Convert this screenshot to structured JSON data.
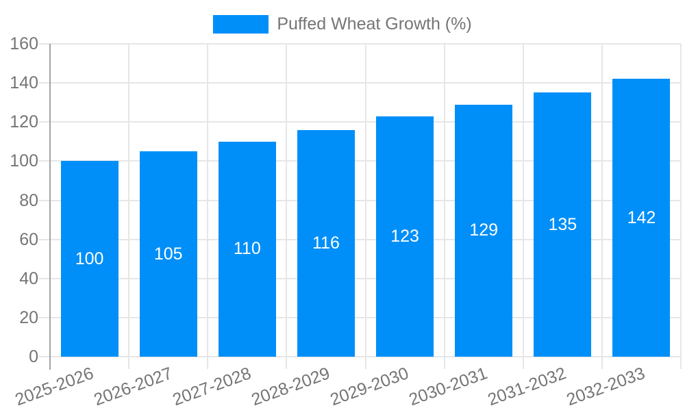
{
  "chart_data": {
    "type": "bar",
    "title": "",
    "series": [
      {
        "name": "Puffed Wheat Growth (%)",
        "values": [
          100,
          105,
          110,
          116,
          123,
          129,
          135,
          142
        ]
      }
    ],
    "categories": [
      "2025-2026",
      "2026-2027",
      "2027-2028",
      "2028-2029",
      "2029-2030",
      "2030-2031",
      "2031-2032",
      "2032-2033"
    ],
    "value_labels": [
      "100",
      "105",
      "110",
      "116",
      "123",
      "129",
      "135",
      "142"
    ],
    "xlabel": "",
    "ylabel": "",
    "ylim": [
      0,
      160
    ],
    "yticks": [
      0,
      20,
      40,
      60,
      80,
      100,
      120,
      140,
      160
    ],
    "grid": true,
    "legend_position": "top-center",
    "x_label_rotation_deg": -20,
    "colors": {
      "bar": "#008FF8",
      "grid": "#e6e6e6",
      "axis_line": "#a3a3a3",
      "tick_text": "#757575",
      "legend_text": "#757575",
      "value_text": "#ffffff",
      "background": "#ffffff"
    }
  }
}
